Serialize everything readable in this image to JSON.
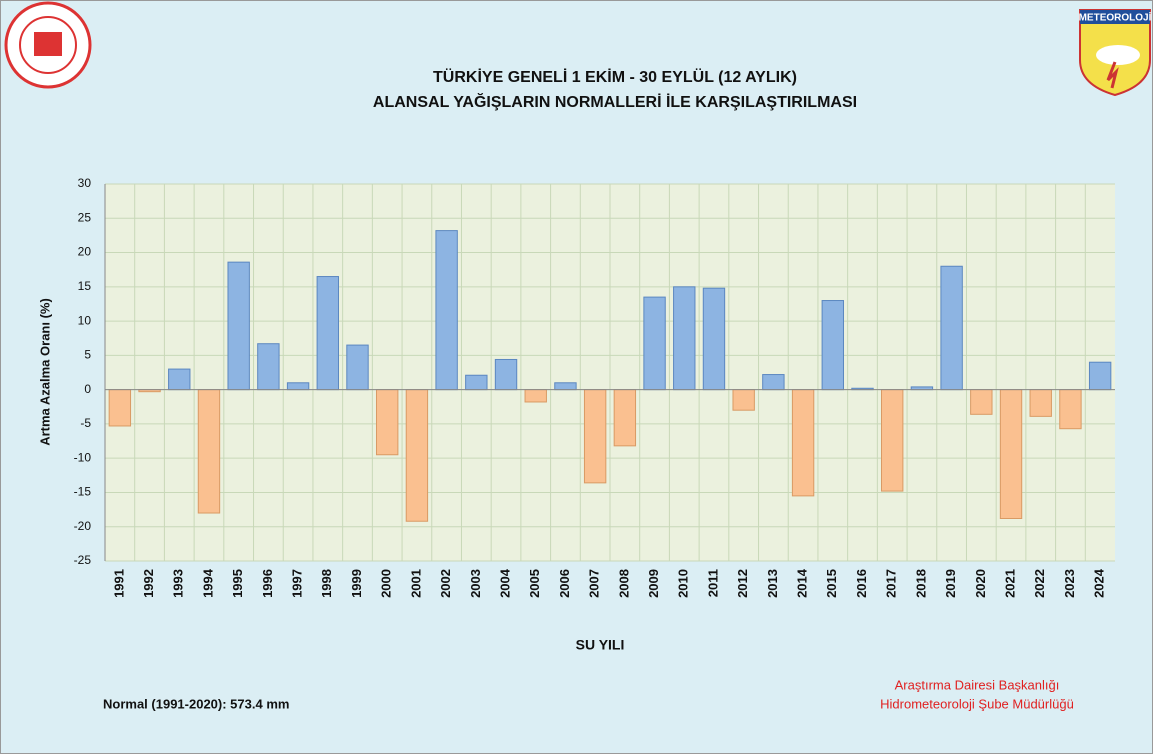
{
  "chart_data": {
    "type": "bar",
    "title": "TÜRKİYE GENELİ  1 EKİM - 30 EYLÜL (12 AYLIK)",
    "subtitle": "ALANSAL YAĞIŞLARIN NORMALLERİ İLE KARŞILAŞTIRILMASI",
    "y_label": "Artma Azalma Oranı (%)",
    "x_label": "SU YILI",
    "note": "Normal (1991-2020): 573.4 mm",
    "credit_lines": [
      "Araştırma Dairesi Başkanlığı",
      "Hidrometeoroloji Şube Müdürlüğü"
    ],
    "logo_text": "METEOROLOJİ",
    "categories": [
      "1991",
      "1992",
      "1993",
      "1994",
      "1995",
      "1996",
      "1997",
      "1998",
      "1999",
      "2000",
      "2001",
      "2002",
      "2003",
      "2004",
      "2005",
      "2006",
      "2007",
      "2008",
      "2009",
      "2010",
      "2011",
      "2012",
      "2013",
      "2014",
      "2015",
      "2016",
      "2017",
      "2018",
      "2019",
      "2020",
      "2021",
      "2022",
      "2023",
      "2024"
    ],
    "values": [
      -5.3,
      -0.3,
      3.0,
      -18.0,
      18.6,
      6.7,
      1.0,
      16.5,
      6.5,
      -9.5,
      -19.2,
      23.2,
      2.1,
      4.4,
      -1.8,
      1.0,
      -13.6,
      -8.2,
      13.5,
      15.0,
      14.8,
      -3.0,
      2.2,
      -15.5,
      13.0,
      0.2,
      -14.8,
      0.4,
      18.0,
      -3.6,
      -18.8,
      -3.9,
      -5.7,
      4.0
    ],
    "positive_color": "#8db4e2",
    "negative_color": "#fac090",
    "ylim": [
      -25,
      30
    ],
    "yticks": [
      -25,
      -20,
      -15,
      -10,
      -5,
      0,
      5,
      10,
      15,
      20,
      25,
      30
    ],
    "grid": true
  }
}
